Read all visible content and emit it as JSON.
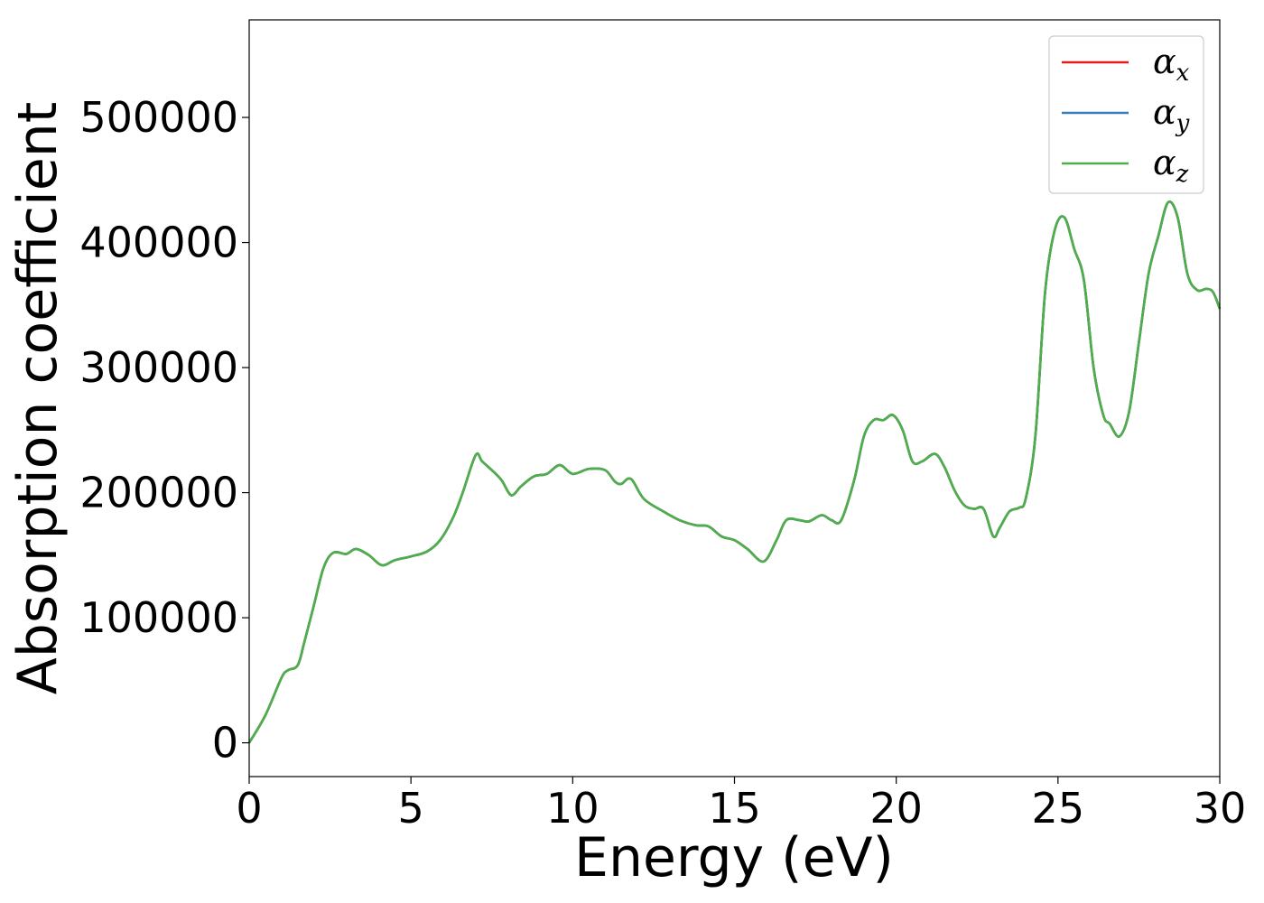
{
  "chart_data": {
    "type": "line",
    "xlabel": "Energy (eV)",
    "ylabel": "Absorption coefficient",
    "xlim": [
      0,
      30
    ],
    "ylim": [
      -27000,
      578000
    ],
    "xticks": [
      0,
      5,
      10,
      15,
      20,
      25,
      30
    ],
    "xtick_labels": [
      "0",
      "5",
      "10",
      "15",
      "20",
      "25",
      "30"
    ],
    "yticks": [
      0,
      100000,
      200000,
      300000,
      400000,
      500000
    ],
    "ytick_labels": [
      "0",
      "100000",
      "200000",
      "300000",
      "400000",
      "500000"
    ],
    "grid": false,
    "legend_position": "top-right",
    "x": [
      0,
      0.5,
      1,
      1.2,
      1.5,
      1.7,
      2,
      2.3,
      2.6,
      3,
      3.3,
      3.7,
      4.1,
      4.5,
      5,
      5.5,
      5.9,
      6.3,
      6.6,
      7.0,
      7.2,
      7.5,
      7.8,
      8.1,
      8.4,
      8.8,
      9.2,
      9.6,
      10.0,
      10.5,
      11.0,
      11.3,
      11.5,
      11.8,
      12.2,
      12.8,
      13.3,
      13.8,
      14.2,
      14.6,
      15.0,
      15.4,
      15.9,
      16.3,
      16.6,
      17.0,
      17.3,
      17.7,
      18.0,
      18.3,
      18.7,
      19.0,
      19.3,
      19.6,
      19.9,
      20.2,
      20.5,
      20.8,
      21.2,
      21.5,
      21.8,
      22.1,
      22.4,
      22.7,
      23.0,
      23.2,
      23.5,
      23.8,
      24.0,
      24.3,
      24.6,
      24.9,
      25.2,
      25.5,
      25.8,
      26.1,
      26.4,
      26.6,
      26.9,
      27.2,
      27.5,
      27.8,
      28.1,
      28.4,
      28.7,
      29.0,
      29.3,
      29.6,
      29.8,
      30.0
    ],
    "series": [
      {
        "name": "α_x",
        "color": "#e41a1c",
        "values": [
          0,
          22000,
          52000,
          58000,
          62000,
          80000,
          110000,
          140000,
          152000,
          151000,
          155000,
          150000,
          142000,
          146000,
          149000,
          153000,
          162000,
          180000,
          200000,
          230000,
          225000,
          218000,
          210000,
          198000,
          205000,
          213000,
          215000,
          222000,
          215000,
          219000,
          218000,
          209000,
          207000,
          211000,
          195000,
          185000,
          178000,
          174000,
          173000,
          165000,
          162000,
          155000,
          145000,
          162000,
          178000,
          178000,
          177000,
          182000,
          178000,
          178000,
          210000,
          245000,
          258000,
          258000,
          262000,
          250000,
          225000,
          225000,
          231000,
          220000,
          202000,
          190000,
          187000,
          187000,
          165000,
          172000,
          185000,
          188000,
          195000,
          245000,
          360000,
          410000,
          420000,
          395000,
          370000,
          300000,
          262000,
          255000,
          245000,
          265000,
          320000,
          375000,
          405000,
          432000,
          420000,
          375000,
          362000,
          363000,
          360000,
          347000
        ]
      },
      {
        "name": "α_y",
        "color": "#377eb8",
        "values": [
          0,
          22000,
          52000,
          58000,
          62000,
          80000,
          110000,
          140000,
          152000,
          151000,
          155000,
          150000,
          142000,
          146000,
          149000,
          153000,
          162000,
          180000,
          200000,
          230000,
          225000,
          218000,
          210000,
          198000,
          205000,
          213000,
          215000,
          222000,
          215000,
          219000,
          218000,
          209000,
          207000,
          211000,
          195000,
          185000,
          178000,
          174000,
          173000,
          165000,
          162000,
          155000,
          145000,
          162000,
          178000,
          178000,
          177000,
          182000,
          178000,
          178000,
          210000,
          245000,
          258000,
          258000,
          262000,
          250000,
          225000,
          225000,
          231000,
          220000,
          202000,
          190000,
          187000,
          187000,
          165000,
          172000,
          185000,
          188000,
          195000,
          245000,
          360000,
          410000,
          420000,
          395000,
          370000,
          300000,
          262000,
          255000,
          245000,
          265000,
          320000,
          375000,
          405000,
          432000,
          420000,
          375000,
          362000,
          363000,
          360000,
          347000
        ]
      },
      {
        "name": "α_z",
        "color": "#4daf4a",
        "values": [
          0,
          22000,
          52000,
          58000,
          62000,
          80000,
          110000,
          140000,
          152000,
          151000,
          155000,
          150000,
          142000,
          146000,
          149000,
          153000,
          162000,
          180000,
          200000,
          230000,
          225000,
          218000,
          210000,
          198000,
          205000,
          213000,
          215000,
          222000,
          215000,
          219000,
          218000,
          209000,
          207000,
          211000,
          195000,
          185000,
          178000,
          174000,
          173000,
          165000,
          162000,
          155000,
          145000,
          162000,
          178000,
          178000,
          177000,
          182000,
          178000,
          178000,
          210000,
          245000,
          258000,
          258000,
          262000,
          250000,
          225000,
          225000,
          231000,
          220000,
          202000,
          190000,
          187000,
          187000,
          165000,
          172000,
          185000,
          188000,
          195000,
          245000,
          360000,
          410000,
          420000,
          395000,
          370000,
          300000,
          262000,
          255000,
          245000,
          265000,
          320000,
          375000,
          405000,
          432000,
          420000,
          375000,
          362000,
          363000,
          360000,
          347000
        ]
      }
    ]
  }
}
